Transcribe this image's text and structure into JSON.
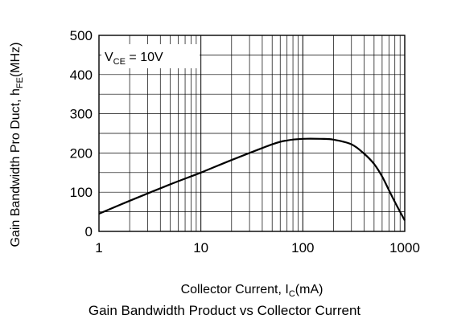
{
  "chart_data": {
    "type": "line",
    "x_scale": "log",
    "xlim": [
      1,
      1000
    ],
    "ylim": [
      0,
      500
    ],
    "xticks": [
      "1",
      "10",
      "100",
      "1000"
    ],
    "yticks": [
      "0",
      "100",
      "200",
      "300",
      "400",
      "500"
    ],
    "grid": true,
    "xlabel": {
      "main": "Collector Current, I",
      "sub": "C",
      "unit": "(mA)"
    },
    "ylabel": {
      "main": "Gain Bandwidth Pro Duct, h",
      "sub": "FE",
      "unit": "(MHz)"
    },
    "annotation": {
      "main": "V",
      "sub": "CE",
      "rest": " = 10V"
    },
    "caption": "Gain Bandwidth Product vs Collector Current",
    "series": [
      {
        "x": [
          1,
          2,
          5,
          10,
          20,
          50,
          70,
          100,
          150,
          200,
          300,
          400,
          500,
          600,
          700,
          800,
          900,
          1000
        ],
        "y": [
          45,
          78,
          120,
          150,
          182,
          222,
          232,
          236,
          236,
          234,
          222,
          198,
          172,
          140,
          105,
          75,
          50,
          28
        ]
      }
    ]
  }
}
